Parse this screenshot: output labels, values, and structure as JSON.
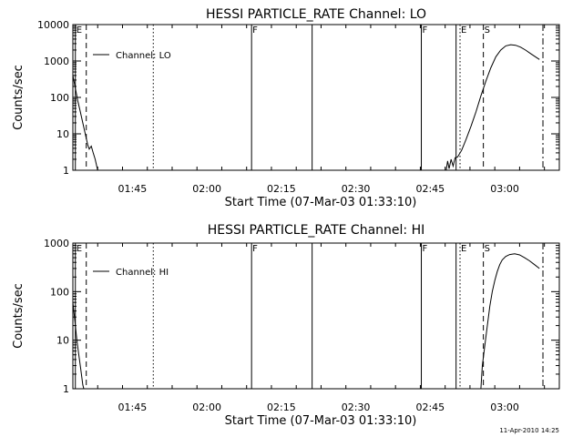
{
  "timestamp": "11-Apr-2010 14:25",
  "chart_data": [
    {
      "type": "line",
      "title": "HESSI PARTICLE_RATE Channel: LO",
      "ylabel": "Counts/sec",
      "xlabel": "Start Time (07-Mar-03 01:33:10)",
      "xlim_min": [
        0,
        98
      ],
      "ylim": [
        1,
        10000
      ],
      "yscale": "log",
      "xticks": [
        {
          "min": 12,
          "label": "01:45"
        },
        {
          "min": 27,
          "label": "02:00"
        },
        {
          "min": 42,
          "label": "02:15"
        },
        {
          "min": 57,
          "label": "02:30"
        },
        {
          "min": 72,
          "label": "02:45"
        },
        {
          "min": 87,
          "label": "03:00"
        }
      ],
      "yticks": [
        {
          "v": 1,
          "label": "1"
        },
        {
          "v": 10,
          "label": "10"
        },
        {
          "v": 100,
          "label": "100"
        },
        {
          "v": 1000,
          "label": "1000"
        },
        {
          "v": 10000,
          "label": "10000"
        }
      ],
      "legend": {
        "label": "Channel: LO",
        "position": "top-left"
      },
      "markers": [
        {
          "min": 0.5,
          "style": "solid",
          "label": "E"
        },
        {
          "min": 2.7,
          "style": "dashed",
          "label": ""
        },
        {
          "min": 16.2,
          "style": "dotted",
          "label": ""
        },
        {
          "min": 36.0,
          "style": "solid",
          "label": "F"
        },
        {
          "min": 48.2,
          "style": "solid",
          "label": ""
        },
        {
          "min": 70.2,
          "style": "solid",
          "label": "F"
        },
        {
          "min": 77.2,
          "style": "solid",
          "label": ""
        },
        {
          "min": 78.0,
          "style": "dotted",
          "label": "E"
        },
        {
          "min": 82.7,
          "style": "dashed",
          "label": "S"
        },
        {
          "min": 94.7,
          "style": "dashdot",
          "label": ""
        }
      ],
      "series": [
        {
          "name": "Channel: LO",
          "segments": [
            [
              [
                0.0,
                400
              ],
              [
                0.5,
                180
              ],
              [
                1.0,
                80
              ],
              [
                1.5,
                40
              ],
              [
                2.0,
                20
              ],
              [
                2.5,
                10
              ],
              [
                3.0,
                5
              ],
              [
                3.3,
                3.8
              ],
              [
                3.7,
                4.6
              ],
              [
                4.1,
                3.0
              ],
              [
                4.5,
                2.0
              ],
              [
                5.0,
                1.0
              ]
            ],
            [
              [
                75.2,
                1.0
              ],
              [
                75.5,
                1.8
              ],
              [
                75.8,
                1.1
              ],
              [
                76.2,
                2.0
              ],
              [
                76.6,
                1.3
              ],
              [
                77.0,
                2.2
              ],
              [
                77.5,
                2.3
              ],
              [
                78.3,
                3.5
              ],
              [
                79.2,
                7
              ],
              [
                80.2,
                16
              ],
              [
                81.2,
                40
              ],
              [
                82.2,
                110
              ],
              [
                83.2,
                280
              ],
              [
                84.2,
                650
              ],
              [
                85.2,
                1300
              ],
              [
                86.2,
                2000
              ],
              [
                87.2,
                2600
              ],
              [
                88.2,
                2800
              ],
              [
                89.2,
                2700
              ],
              [
                90.2,
                2400
              ],
              [
                91.2,
                2000
              ],
              [
                92.2,
                1600
              ],
              [
                93.2,
                1300
              ],
              [
                94.0,
                1100
              ]
            ]
          ]
        }
      ]
    },
    {
      "type": "line",
      "title": "HESSI PARTICLE_RATE Channel: HI",
      "ylabel": "Counts/sec",
      "xlabel": "Start Time (07-Mar-03 01:33:10)",
      "xlim_min": [
        0,
        98
      ],
      "ylim": [
        1,
        1000
      ],
      "yscale": "log",
      "xticks": [
        {
          "min": 12,
          "label": "01:45"
        },
        {
          "min": 27,
          "label": "02:00"
        },
        {
          "min": 42,
          "label": "02:15"
        },
        {
          "min": 57,
          "label": "02:30"
        },
        {
          "min": 72,
          "label": "02:45"
        },
        {
          "min": 87,
          "label": "03:00"
        }
      ],
      "yticks": [
        {
          "v": 1,
          "label": "1"
        },
        {
          "v": 10,
          "label": "10"
        },
        {
          "v": 100,
          "label": "100"
        },
        {
          "v": 1000,
          "label": "1000"
        }
      ],
      "legend": {
        "label": "Channel: HI",
        "position": "top-left"
      },
      "markers": [
        {
          "min": 0.5,
          "style": "solid",
          "label": "E"
        },
        {
          "min": 2.7,
          "style": "dashed",
          "label": ""
        },
        {
          "min": 16.2,
          "style": "dotted",
          "label": ""
        },
        {
          "min": 36.0,
          "style": "solid",
          "label": "F"
        },
        {
          "min": 48.2,
          "style": "solid",
          "label": ""
        },
        {
          "min": 70.2,
          "style": "solid",
          "label": "F"
        },
        {
          "min": 77.2,
          "style": "solid",
          "label": ""
        },
        {
          "min": 78.0,
          "style": "dotted",
          "label": "E"
        },
        {
          "min": 82.7,
          "style": "dashed",
          "label": "S"
        },
        {
          "min": 94.7,
          "style": "dashdot",
          "label": ""
        }
      ],
      "series": [
        {
          "name": "Channel: HI",
          "segments": [
            [
              [
                0.0,
                60
              ],
              [
                0.4,
                25
              ],
              [
                0.8,
                10
              ],
              [
                1.2,
                5
              ],
              [
                1.6,
                2.5
              ],
              [
                2.0,
                1.2
              ],
              [
                2.2,
                1.0
              ]
            ],
            [
              [
                82.2,
                1.0
              ],
              [
                82.5,
                3
              ],
              [
                83.0,
                8
              ],
              [
                83.5,
                20
              ],
              [
                84.0,
                50
              ],
              [
                84.5,
                100
              ],
              [
                85.0,
                170
              ],
              [
                85.5,
                260
              ],
              [
                86.0,
                360
              ],
              [
                86.5,
                450
              ],
              [
                87.2,
                530
              ],
              [
                88.0,
                580
              ],
              [
                89.0,
                600
              ],
              [
                90.0,
                570
              ],
              [
                91.0,
                500
              ],
              [
                92.0,
                430
              ],
              [
                93.0,
                360
              ],
              [
                94.0,
                300
              ]
            ]
          ]
        }
      ]
    }
  ]
}
